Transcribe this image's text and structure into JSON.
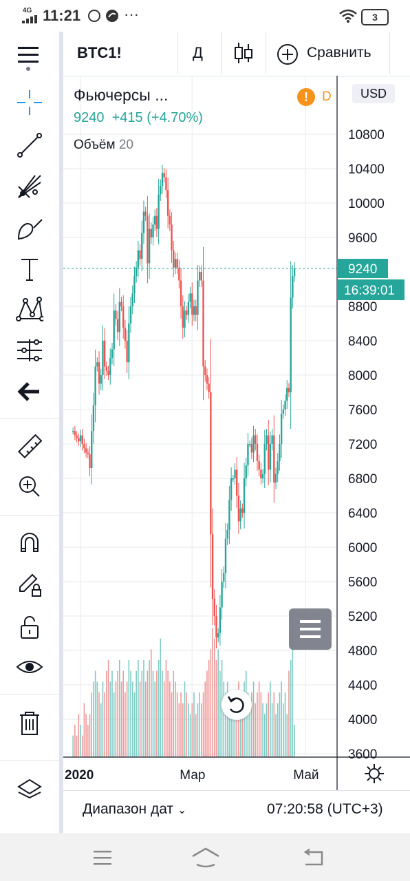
{
  "status_bar": {
    "network": "4G",
    "time": "11:21",
    "battery": "3",
    "icons": [
      "signal-icon",
      "whatsapp-icon",
      "notification-icon",
      "more-dots-icon",
      "wifi-icon",
      "battery-icon"
    ]
  },
  "toolbar": {
    "menu_icon": "hamburger-icon",
    "symbol": "BTC1!",
    "interval": "Д",
    "chart_type_icon": "candles-icon",
    "compare_label": "Сравнить",
    "compare_icon": "plus-circle-icon"
  },
  "sidebar": {
    "tools": [
      {
        "name": "crosshair-icon"
      },
      {
        "name": "trend-line-icon"
      },
      {
        "name": "gann-fib-icon"
      },
      {
        "name": "brush-icon"
      },
      {
        "name": "text-icon"
      },
      {
        "name": "pattern-icon"
      },
      {
        "name": "prediction-icon"
      },
      {
        "name": "back-arrow-icon"
      },
      {
        "name": "ruler-icon"
      },
      {
        "name": "zoom-in-icon"
      },
      {
        "name": "magnet-icon"
      },
      {
        "name": "lock-drawing-icon"
      },
      {
        "name": "unlock-icon"
      },
      {
        "name": "eye-icon"
      },
      {
        "name": "trash-icon"
      },
      {
        "name": "layers-icon"
      }
    ]
  },
  "legend": {
    "title": "Фьючерсы ...",
    "price": "9240",
    "change": "+415 (+4.70%)",
    "volume_label": "Объём",
    "volume_value": "20",
    "delay_badge": "D",
    "currency": "USD"
  },
  "colors": {
    "up": "#26a69a",
    "down": "#ef5350",
    "accent": "#2196f3",
    "warning": "#f7931a",
    "text": "#131722"
  },
  "chart_data": {
    "type": "candlestick",
    "symbol": "BTC1!",
    "interval": "1D",
    "currency": "USD",
    "last_price": 9240,
    "last_price_label": "9240",
    "countdown_label": "16:39:01",
    "y_ticks": [
      10800,
      10400,
      10000,
      9600,
      8800,
      8400,
      8000,
      7600,
      7200,
      6800,
      6400,
      6000,
      5600,
      5200,
      4800,
      4400,
      4000,
      3600
    ],
    "y_range": [
      3600,
      11200
    ],
    "x_ticks": [
      {
        "label": "2020",
        "day": 4
      },
      {
        "label": "Мар",
        "day": 64
      },
      {
        "label": "Май",
        "day": 125
      }
    ],
    "x_range_days": [
      -1,
      130
    ],
    "closes": [
      7350,
      7300,
      7270,
      7230,
      7300,
      7200,
      7150,
      7100,
      7080,
      6920,
      7350,
      7650,
      8100,
      8150,
      7900,
      8000,
      8400,
      8100,
      8050,
      8000,
      8200,
      8300,
      8750,
      8650,
      8500,
      8850,
      8800,
      8550,
      8400,
      8150,
      8600,
      8800,
      8950,
      9150,
      9250,
      9450,
      9350,
      9650,
      9900,
      9850,
      9300,
      9700,
      9600,
      9750,
      9850,
      9700,
      10100,
      10200,
      10350,
      10300,
      10150,
      9850,
      9750,
      9450,
      9250,
      9350,
      9250,
      9100,
      8800,
      8550,
      8750,
      8700,
      8850,
      8950,
      8700,
      8800,
      8700,
      9100,
      9200,
      9100,
      8100,
      8000,
      7900,
      7800,
      6150,
      5400,
      5200,
      4950,
      5000,
      5300,
      5600,
      5700,
      6100,
      6200,
      6550,
      6800,
      6800,
      6900,
      6600,
      6300,
      6450,
      6400,
      6800,
      6950,
      7200,
      7200,
      7100,
      7300,
      7200,
      7000,
      6900,
      6800,
      6850,
      7200,
      7300,
      6900,
      7200,
      7300,
      6750,
      6850,
      7000,
      7200,
      7550,
      7600,
      7700,
      7850,
      7800,
      8900,
      9150,
      9240
    ],
    "volume": [
      2,
      3,
      2,
      4,
      3,
      2,
      5,
      4,
      3,
      4,
      6,
      7,
      8,
      7,
      6,
      5,
      7,
      6,
      8,
      9,
      7,
      8,
      6,
      7,
      8,
      9,
      7,
      8,
      6,
      7,
      9,
      8,
      7,
      6,
      8,
      9,
      7,
      8,
      9,
      7,
      8,
      9,
      10,
      8,
      7,
      8,
      9,
      11,
      8,
      7,
      9,
      8,
      7,
      6,
      8,
      7,
      6,
      5,
      6,
      5,
      7,
      6,
      5,
      4,
      5,
      6,
      4,
      5,
      6,
      5,
      6,
      7,
      8,
      9,
      10,
      12,
      11,
      9,
      10,
      8,
      9,
      7,
      6,
      7,
      6,
      5,
      4,
      5,
      6,
      7,
      5,
      6,
      7,
      8,
      6,
      5,
      6,
      7,
      5,
      6,
      7,
      6,
      5,
      4,
      5,
      6,
      7,
      5,
      6,
      4,
      5,
      6,
      7,
      5,
      6,
      4,
      8,
      9,
      12,
      3
    ],
    "volume_max": 15
  },
  "bottom": {
    "date_range_label": "Диапазон дат",
    "clock": "07:20:58 (UTC+3)"
  },
  "navbar": {
    "icons": [
      "recents-icon",
      "home-icon",
      "back-icon"
    ]
  }
}
